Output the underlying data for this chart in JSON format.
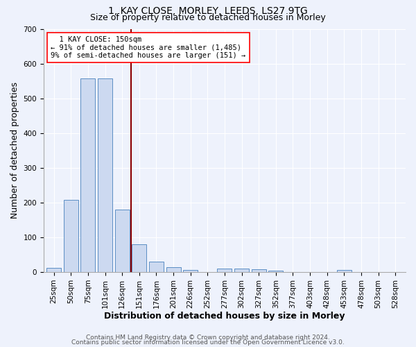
{
  "title1": "1, KAY CLOSE, MORLEY, LEEDS, LS27 9TG",
  "title2": "Size of property relative to detached houses in Morley",
  "xlabel": "Distribution of detached houses by size in Morley",
  "ylabel": "Number of detached properties",
  "categories": [
    "25sqm",
    "50sqm",
    "75sqm",
    "101sqm",
    "126sqm",
    "151sqm",
    "176sqm",
    "201sqm",
    "226sqm",
    "252sqm",
    "277sqm",
    "302sqm",
    "327sqm",
    "352sqm",
    "377sqm",
    "403sqm",
    "428sqm",
    "453sqm",
    "478sqm",
    "503sqm",
    "528sqm"
  ],
  "values": [
    13,
    207,
    557,
    557,
    180,
    80,
    30,
    14,
    7,
    0,
    10,
    10,
    8,
    5,
    0,
    0,
    0,
    7,
    0,
    0,
    0
  ],
  "bar_color": "#ccd9f0",
  "bar_edge_color": "#5b8ec4",
  "vline_color": "#8b0000",
  "annotation_text": "  1 KAY CLOSE: 150sqm  \n← 91% of detached houses are smaller (1,485)\n9% of semi-detached houses are larger (151) →",
  "ylim": [
    0,
    700
  ],
  "yticks": [
    0,
    100,
    200,
    300,
    400,
    500,
    600,
    700
  ],
  "footer1": "Contains HM Land Registry data © Crown copyright and database right 2024.",
  "footer2": "Contains public sector information licensed under the Open Government Licence v3.0.",
  "bg_color": "#eef2fc",
  "plot_bg_color": "#eef2fc",
  "title_fontsize": 10,
  "subtitle_fontsize": 9,
  "axis_label_fontsize": 9,
  "tick_fontsize": 7.5,
  "footer_fontsize": 6.5
}
